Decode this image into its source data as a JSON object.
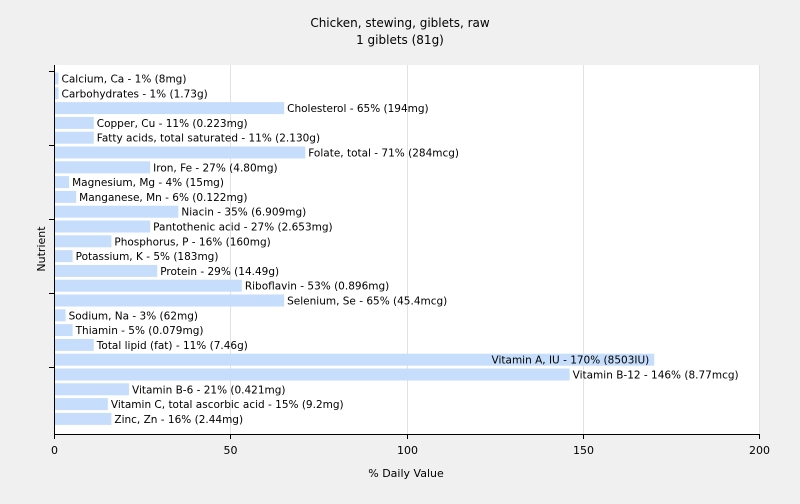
{
  "chart_data": {
    "type": "bar",
    "orientation": "horizontal",
    "title": "Chicken, stewing, giblets, raw",
    "subtitle": "1 giblets (81g)",
    "xlabel": "% Daily Value",
    "ylabel": "Nutrient",
    "xlim": [
      0,
      200
    ],
    "xticks": [
      0,
      50,
      100,
      150,
      200
    ],
    "grid": true,
    "bar_color": "#c6defb",
    "bar_label_background": "#c6defb",
    "categories": [
      "Calcium, Ca",
      "Carbohydrates",
      "Cholesterol",
      "Copper, Cu",
      "Fatty acids, total saturated",
      "Folate, total",
      "Iron, Fe",
      "Magnesium, Mg",
      "Manganese, Mn",
      "Niacin",
      "Pantothenic acid",
      "Phosphorus, P",
      "Potassium, K",
      "Protein",
      "Riboflavin",
      "Selenium, Se",
      "Sodium, Na",
      "Thiamin",
      "Total lipid (fat)",
      "Vitamin A, IU",
      "Vitamin B-12",
      "Vitamin B-6",
      "Vitamin C, total ascorbic acid",
      "Zinc, Zn"
    ],
    "values": [
      1,
      1,
      65,
      11,
      11,
      71,
      27,
      4,
      6,
      35,
      27,
      16,
      5,
      29,
      53,
      65,
      3,
      5,
      11,
      170,
      146,
      21,
      15,
      16
    ],
    "labels": [
      "Calcium, Ca - 1% (8mg)",
      "Carbohydrates - 1% (1.73g)",
      "Cholesterol - 65% (194mg)",
      "Copper, Cu - 11% (0.223mg)",
      "Fatty acids, total saturated - 11% (2.130g)",
      "Folate, total - 71% (284mcg)",
      "Iron, Fe - 27% (4.80mg)",
      "Magnesium, Mg - 4% (15mg)",
      "Manganese, Mn - 6% (0.122mg)",
      "Niacin - 35% (6.909mg)",
      "Pantothenic acid - 27% (2.653mg)",
      "Phosphorus, P - 16% (160mg)",
      "Potassium, K - 5% (183mg)",
      "Protein - 29% (14.49g)",
      "Riboflavin - 53% (0.896mg)",
      "Selenium, Se - 65% (45.4mcg)",
      "Sodium, Na - 3% (62mg)",
      "Thiamin - 5% (0.079mg)",
      "Total lipid (fat) - 11% (7.46g)",
      "Vitamin A, IU - 170% (8503IU)",
      "Vitamin B-12 - 146% (8.77mcg)",
      "Vitamin B-6 - 21% (0.421mg)",
      "Vitamin C, total ascorbic acid - 15% (9.2mg)",
      "Zinc, Zn - 16% (2.44mg)"
    ]
  }
}
